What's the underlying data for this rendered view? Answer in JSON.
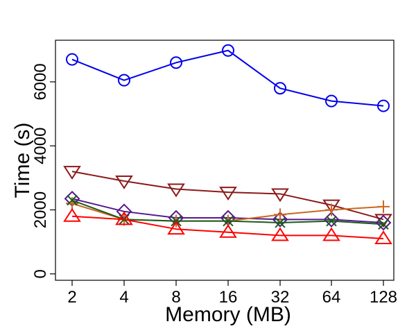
{
  "chart_data": {
    "type": "line",
    "title": "",
    "xlabel": "Memory (MB)",
    "ylabel": "Time (s)",
    "categories": [
      "2",
      "4",
      "8",
      "16",
      "32",
      "64",
      "128"
    ],
    "ylim": [
      -200,
      7300
    ],
    "yticks": [
      0,
      2000,
      4000,
      6000
    ],
    "grid": false,
    "legend": "none",
    "series": [
      {
        "name": "series-circle",
        "color": "#0000ee",
        "marker": "circle",
        "values": [
          6700,
          6050,
          6600,
          6980,
          5800,
          5400,
          5250
        ]
      },
      {
        "name": "series-triangle-down",
        "color": "#8b1a1a",
        "marker": "triangle-down",
        "values": [
          3200,
          2900,
          2650,
          2550,
          2500,
          2150,
          1700
        ]
      },
      {
        "name": "series-diamond",
        "color": "#551a8b",
        "marker": "diamond",
        "values": [
          2350,
          1950,
          1750,
          1750,
          1700,
          1700,
          1600
        ]
      },
      {
        "name": "series-plus",
        "color": "#cd661d",
        "marker": "plus",
        "values": [
          2200,
          1700,
          1650,
          1650,
          1850,
          2000,
          2100
        ]
      },
      {
        "name": "series-cross",
        "color": "#1a5c1a",
        "marker": "cross",
        "values": [
          2300,
          1700,
          1650,
          1650,
          1600,
          1650,
          1550
        ]
      },
      {
        "name": "series-triangle-up",
        "color": "#ff0000",
        "marker": "triangle-up",
        "values": [
          1800,
          1700,
          1400,
          1300,
          1200,
          1200,
          1100
        ]
      }
    ]
  }
}
